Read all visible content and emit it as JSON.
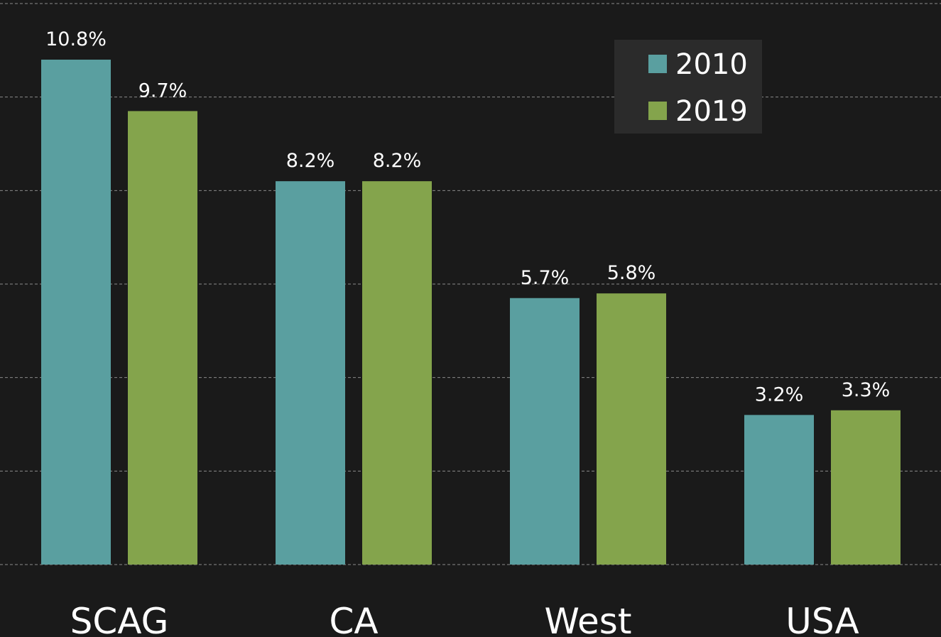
{
  "chart_data": {
    "type": "bar",
    "categories": [
      "SCAG",
      "CA",
      "West",
      "USA"
    ],
    "series": [
      {
        "name": "2010",
        "color": "#5a9fa0",
        "values": [
          10.8,
          8.2,
          5.7,
          3.2
        ],
        "value_labels": [
          "10.8%",
          "8.2%",
          "5.7%",
          "3.2%"
        ]
      },
      {
        "name": "2019",
        "color": "#84a44c",
        "values": [
          9.7,
          8.2,
          5.8,
          3.3
        ],
        "value_labels": [
          "9.7%",
          "8.2%",
          "5.8%",
          "3.3%"
        ]
      }
    ],
    "ylim": [
      0,
      12
    ],
    "yticks": [
      0,
      2,
      4,
      6,
      8,
      10,
      12
    ],
    "grid": true,
    "legend": "upper right"
  }
}
